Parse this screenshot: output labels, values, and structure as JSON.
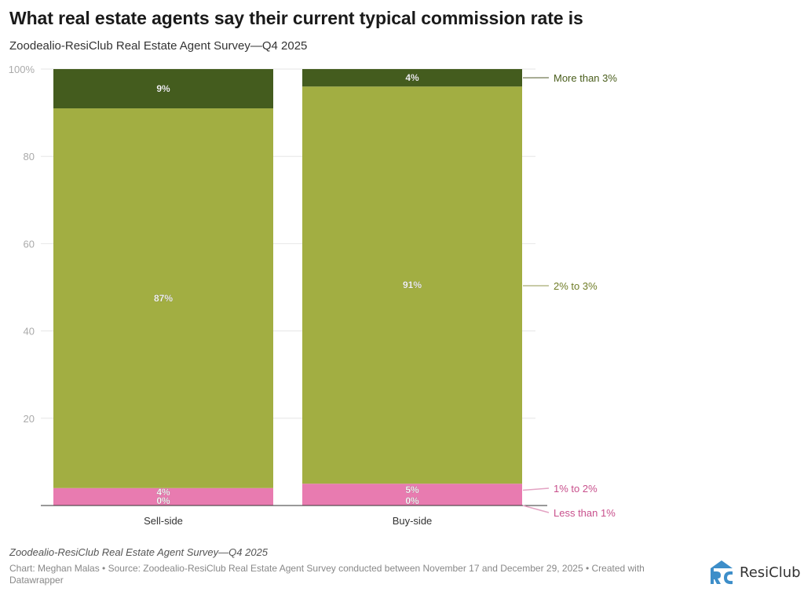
{
  "header": {
    "title": "What real estate agents say their current typical commission rate is",
    "subtitle": "Zoodealio-ResiClub Real Estate Agent Survey—Q4 2025"
  },
  "footer": {
    "notes": "Zoodealio-ResiClub Real Estate Agent Survey—Q4 2025",
    "byline": "Chart: Meghan Malas • Source: Zoodealio-ResiClub Real Estate Agent Survey conducted between November 17 and December 29, 2025 • Created with Datawrapper",
    "logo_text": "ResiClub",
    "logo_icon": "resiclub-rc-house-icon",
    "logo_color": "#3d8ec9"
  },
  "chart_data": {
    "type": "bar",
    "stacked": true,
    "orientation": "vertical",
    "title": "What real estate agents say their current typical commission rate is",
    "subtitle": "Zoodealio-ResiClub Real Estate Agent Survey—Q4 2025",
    "xlabel": "",
    "ylabel": "",
    "ylim": [
      0,
      100
    ],
    "y_ticks": [
      0,
      20,
      40,
      60,
      80,
      100
    ],
    "y_tick_labels": [
      "",
      "20",
      "40",
      "60",
      "80",
      "100%"
    ],
    "grid": true,
    "legend_placement": "right (direct labels)",
    "categories": [
      "Sell-side",
      "Buy-side"
    ],
    "series": [
      {
        "name": "Less than 1%",
        "values": [
          0,
          0
        ],
        "labels": [
          "0%",
          "0%"
        ],
        "color": "#c2185b"
      },
      {
        "name": "1% to 2%",
        "values": [
          4,
          5
        ],
        "labels": [
          "4%",
          "5%"
        ],
        "color": "#e87bb0"
      },
      {
        "name": "2% to 3%",
        "values": [
          87,
          91
        ],
        "labels": [
          "87%",
          "91%"
        ],
        "color": "#a2ae42"
      },
      {
        "name": "More than 3%",
        "values": [
          9,
          4
        ],
        "labels": [
          "9%",
          "4%"
        ],
        "color": "#445c1e"
      }
    ],
    "legend_label_colors": {
      "More than 3%": "#4a5e1c",
      "2% to 3%": "#6f7c26",
      "1% to 2%": "#c8508c",
      "Less than 1%": "#c8508c"
    }
  }
}
